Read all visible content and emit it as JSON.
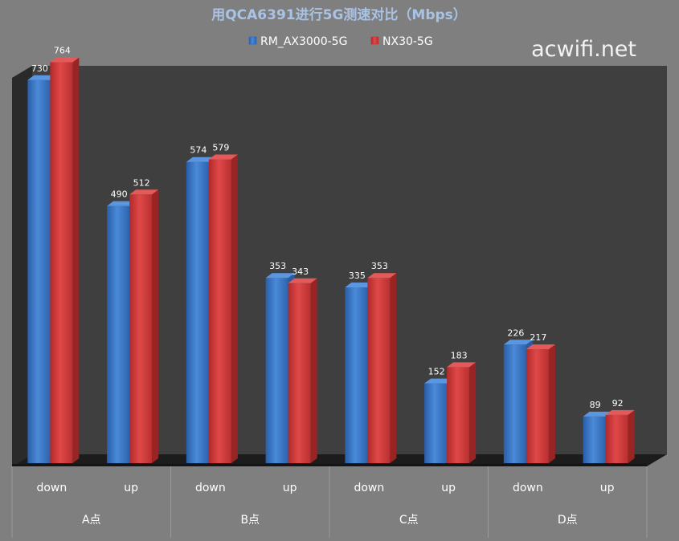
{
  "watermark": "acwifi.net",
  "chart_data": {
    "type": "bar",
    "title": "用QCA6391进行5G测速对比（Mbps）",
    "groups": [
      "A点",
      "B点",
      "C点",
      "D点"
    ],
    "categories": [
      "down",
      "up",
      "down",
      "up",
      "down",
      "up",
      "down",
      "up"
    ],
    "series": [
      {
        "name": "RM_AX3000-5G",
        "color": "#3a78c9",
        "values": [
          730,
          490,
          574,
          353,
          335,
          152,
          226,
          89
        ]
      },
      {
        "name": "NX30-5G",
        "color": "#d03a3a",
        "values": [
          764,
          512,
          579,
          343,
          353,
          183,
          217,
          92
        ]
      }
    ],
    "ylim": [
      0,
      800
    ],
    "legend": "top-center",
    "grid": false
  }
}
